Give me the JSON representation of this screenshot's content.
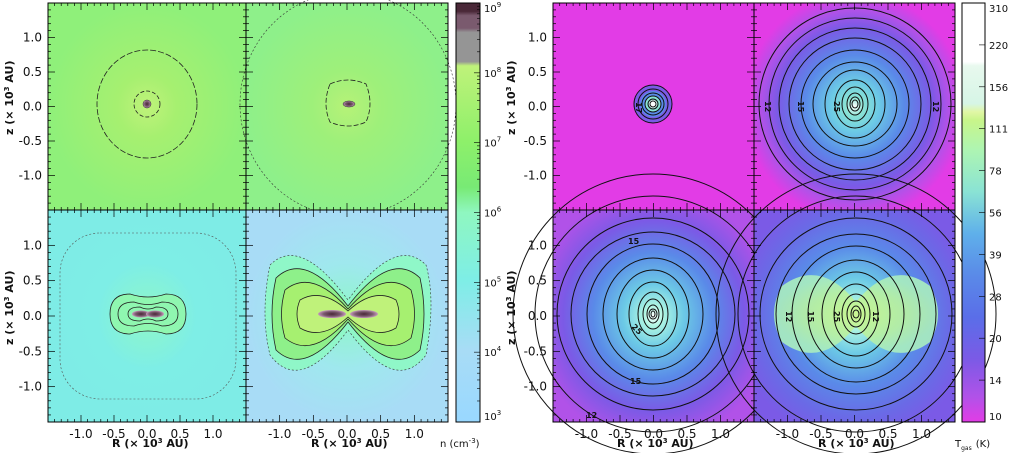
{
  "chart_data": [
    {
      "type": "heatmap",
      "title": "",
      "quantity": "density",
      "xlabel_parts": [
        "R",
        "(× 10",
        "3",
        " AU)"
      ],
      "ylabel_parts": [
        "z",
        "(× 10",
        "3",
        " AU)"
      ],
      "xlim": [
        -1.5,
        1.5
      ],
      "ylim": [
        -1.5,
        1.5
      ],
      "x_ticks": [
        "-1.0",
        "-0.5",
        "0.0",
        "0.5",
        "1.0"
      ],
      "x_tick_values": [
        -1.0,
        -0.5,
        0.0,
        0.5,
        1.0
      ],
      "y_ticks": [
        "1.0",
        "0.5",
        "0.0",
        "-0.5",
        "-1.0"
      ],
      "y_tick_values": [
        1.0,
        0.5,
        0.0,
        -0.5,
        -1.0
      ],
      "colorbar": {
        "label_parts": [
          "n",
          "(cm",
          "-3",
          ")"
        ],
        "scale": "log",
        "range": [
          1000,
          1000000000
        ],
        "tick_bases": [
          "10",
          "10",
          "10",
          "10",
          "10",
          "10",
          "10"
        ],
        "tick_exponents": [
          "9",
          "8",
          "7",
          "6",
          "5",
          "4",
          "3"
        ],
        "tick_values": [
          1000000000,
          100000000,
          10000000,
          1000000,
          100000,
          10000,
          1000
        ],
        "colors": [
          "#99d8ff",
          "#aadff2",
          "#7eeee6",
          "#8ff7c0",
          "#78ea75",
          "#8ef06a",
          "#a6f070",
          "#bff27a",
          "#959595",
          "#7a5a6e",
          "#4a2838"
        ]
      },
      "panels": [
        {
          "position": "top-left",
          "background_log_n": 7.4,
          "features": "compact dense core with circular contours"
        },
        {
          "position": "top-right",
          "background_log_n": 7.2,
          "features": "compact core, slightly elongated"
        },
        {
          "position": "bottom-left",
          "background_log_n": 4.9,
          "features": "flattened disk-like structure with elongated contours"
        },
        {
          "position": "bottom-right",
          "background_log_n": 4.3,
          "features": "bipolar lobes, peanut-shaped envelope"
        }
      ]
    },
    {
      "type": "heatmap",
      "title": "",
      "quantity": "gas temperature",
      "xlabel_parts": [
        "R",
        "(× 10",
        "3",
        " AU)"
      ],
      "ylabel_parts": [
        "z",
        "(× 10",
        "3",
        " AU)"
      ],
      "xlim": [
        -1.5,
        1.5
      ],
      "ylim": [
        -1.5,
        1.5
      ],
      "x_ticks": [
        "-1.0",
        "-0.5",
        "0.0",
        "0.5",
        "1.0"
      ],
      "x_tick_values": [
        -1.0,
        -0.5,
        0.0,
        0.5,
        1.0
      ],
      "y_ticks": [
        "1.0",
        "0.5",
        "0.0",
        "-0.5",
        "-1.0"
      ],
      "y_tick_values": [
        1.0,
        0.5,
        0.0,
        -0.5,
        -1.0
      ],
      "colorbar": {
        "label_parts": [
          "T",
          "gas",
          "(K)"
        ],
        "scale": "log",
        "range": [
          10,
          310
        ],
        "tick_labels": [
          "310",
          "220",
          "156",
          "111",
          "78",
          "56",
          "39",
          "28",
          "20",
          "14",
          "10"
        ],
        "tick_values": [
          310,
          220,
          156,
          111,
          78,
          56,
          39,
          28,
          20,
          14,
          10
        ],
        "colors": [
          "#e23ce6",
          "#b152e8",
          "#7b5ae6",
          "#5a6ee8",
          "#5a8ae8",
          "#5fb0ea",
          "#6ccae6",
          "#8ae3d4",
          "#aef5b2",
          "#c8f58a",
          "#e0f7a5",
          "#d6f5e6",
          "#ffffff"
        ]
      },
      "panels": [
        {
          "position": "top-left",
          "background_T": 10,
          "contour_labels": [
            "17"
          ],
          "features": "small warm core at center"
        },
        {
          "position": "top-right",
          "background_T": 11,
          "contour_labels": [
            "12",
            "15",
            "25",
            "12"
          ],
          "features": "concentric circular contours"
        },
        {
          "position": "bottom-left",
          "background_T": 12,
          "contour_labels": [
            "15",
            "25",
            "15",
            "12"
          ],
          "features": "concentric contours, warm inner region"
        },
        {
          "position": "bottom-right",
          "background_T": 13,
          "contour_labels": [
            "12",
            "15",
            "25",
            "12"
          ],
          "features": "warm bipolar lobes crossing the center"
        }
      ]
    }
  ]
}
